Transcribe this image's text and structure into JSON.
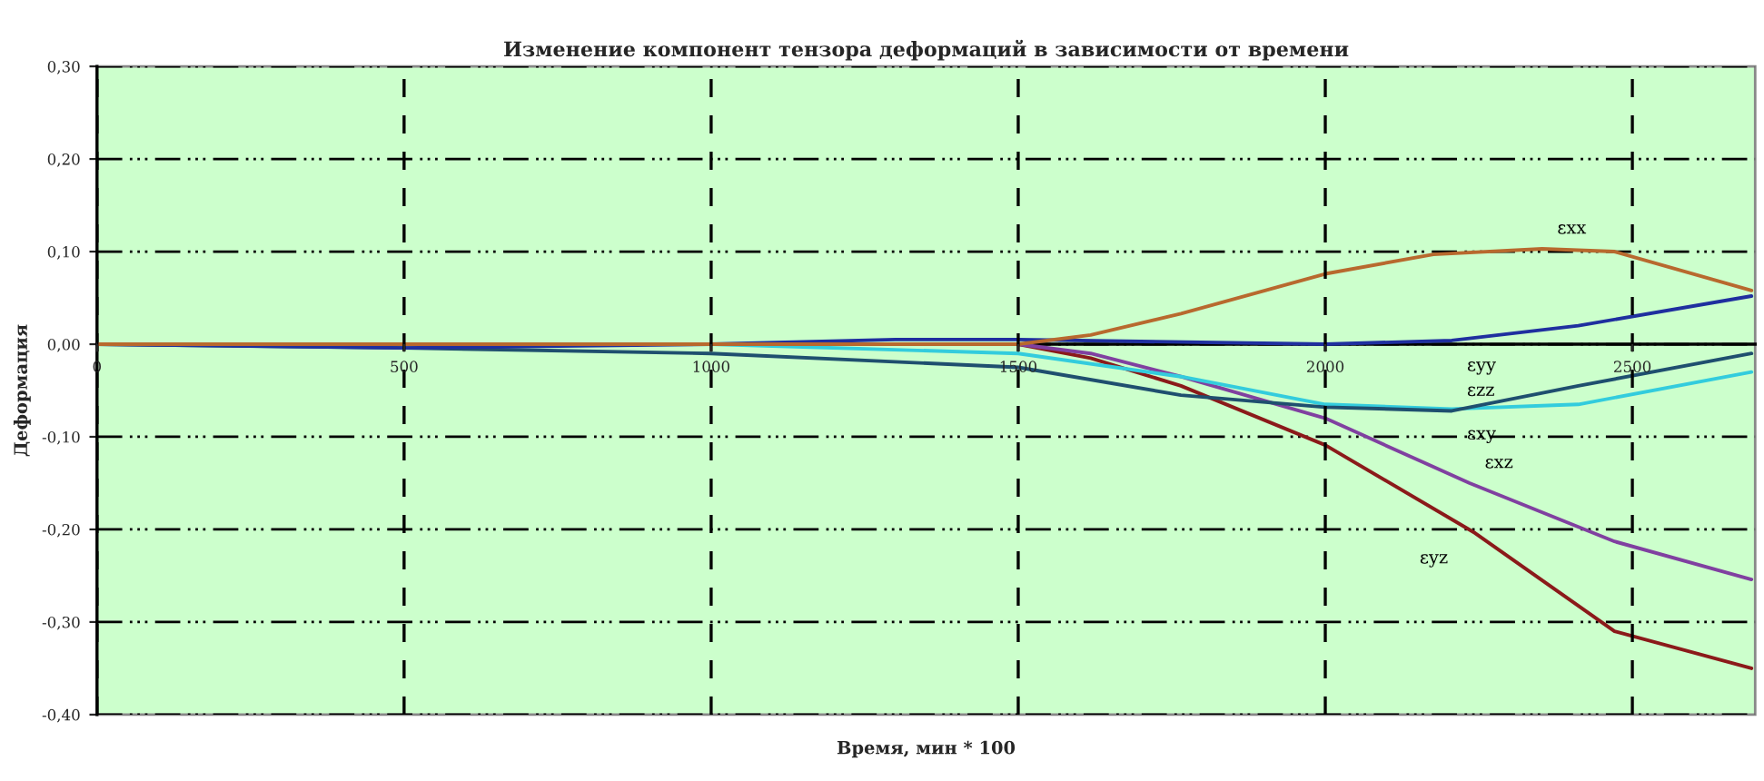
{
  "chart_data": {
    "type": "line",
    "title": "Изменение компонент тензора деформаций в зависимости от времени",
    "xlabel": "Время, мин * 100",
    "ylabel": "Деформация",
    "series": [
      {
        "name": "εxx",
        "color": "#b8692e",
        "x": [
          0,
          500,
          1000,
          1500,
          1618,
          1765,
          2000,
          2176,
          2353,
          2471,
          2694
        ],
        "values": [
          0,
          0,
          0,
          0,
          0.01,
          0.033,
          0.076,
          0.097,
          0.103,
          0.1,
          0.058
        ]
      },
      {
        "name": "εyy",
        "color": "#1f2f9f",
        "x": [
          0,
          500,
          1000,
          1300,
          1500,
          2000,
          2206,
          2412,
          2694
        ],
        "values": [
          0,
          -0.004,
          0,
          0.005,
          0.005,
          0,
          0.004,
          0.02,
          0.052
        ]
      },
      {
        "name": "εzz",
        "color": "#1f4f6f",
        "x": [
          0,
          500,
          1000,
          1500,
          1765,
          2000,
          2206,
          2412,
          2694
        ],
        "values": [
          0,
          -0.004,
          -0.01,
          -0.025,
          -0.055,
          -0.068,
          -0.072,
          -0.045,
          -0.01
        ]
      },
      {
        "name": "εxy",
        "color": "#33ccdd",
        "x": [
          1000,
          1500,
          1765,
          2000,
          2206,
          2412,
          2694
        ],
        "values": [
          0,
          -0.01,
          -0.035,
          -0.065,
          -0.07,
          -0.065,
          -0.03
        ]
      },
      {
        "name": "εxz",
        "color": "#8040a0",
        "x": [
          1500,
          1618,
          1765,
          2000,
          2235,
          2471,
          2694
        ],
        "values": [
          0,
          -0.01,
          -0.035,
          -0.08,
          -0.15,
          -0.213,
          -0.254
        ]
      },
      {
        "name": "εyz",
        "color": "#8b1a1a",
        "x": [
          1500,
          1618,
          1765,
          2000,
          2244,
          2471,
          2694
        ],
        "values": [
          0,
          -0.015,
          -0.045,
          -0.109,
          -0.204,
          -0.31,
          -0.35
        ]
      }
    ],
    "xlim": [
      0,
      2700
    ],
    "xticks": [
      0,
      500,
      1000,
      1500,
      2000,
      2500
    ],
    "ylim": [
      -0.4,
      0.3
    ],
    "yticks": [
      {
        "value": 0.3,
        "label": "0,30"
      },
      {
        "value": 0.2,
        "label": "0,20"
      },
      {
        "value": 0.1,
        "label": "0,10"
      },
      {
        "value": 0.0,
        "label": "0,00"
      },
      {
        "value": -0.1,
        "label": "-0,10"
      },
      {
        "value": -0.2,
        "label": "-0,20"
      },
      {
        "value": -0.3,
        "label": "-0,30"
      },
      {
        "value": -0.4,
        "label": "-0,40"
      }
    ],
    "grid": true,
    "legend": false,
    "marker": "none",
    "line_style": "solid"
  }
}
